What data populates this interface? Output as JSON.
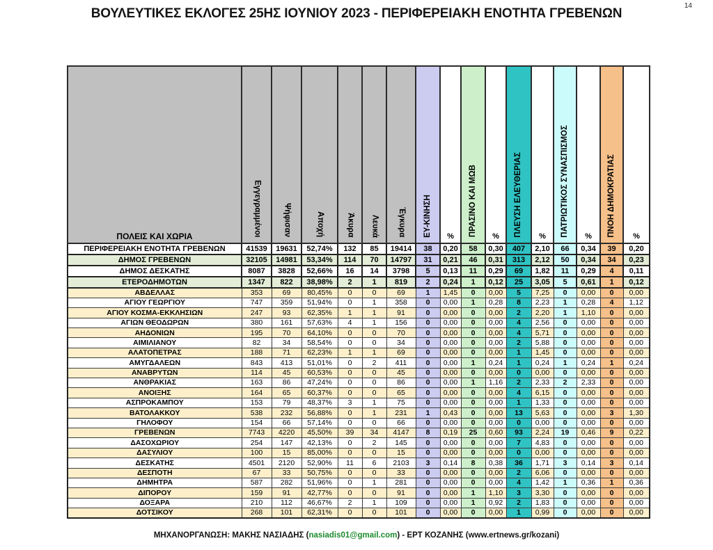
{
  "page": {
    "title": "ΒΟΥΛΕΥΤΙΚΕΣ ΕΚΛΟΓΕΣ 25ΗΣ ΙΟΥΝΙΟΥ 2023 - ΠΕΡΙΦΕΡΕΙΑΚΗ ΕΝΟΤΗΤΑ ΓΡΕΒΕΝΩΝ",
    "page_number": "14",
    "footer": {
      "prefix": "ΜΗΧΑΝΟΡΓΑΝΩΣΗ: ΜΑΚΗΣ ΝΑΣΙΑΔΗΣ (",
      "email": "nasiadis01@gmail.com",
      "middle": ") - ΕΡΤ ΚΟΖΑΝΗΣ (",
      "url": "www.ertnews.gr/kozani",
      "suffix": ")"
    }
  },
  "colors": {
    "header_gray": "#c0c0c0",
    "row_white": "#ffffff",
    "row_green": "#e2ecd7",
    "row_cream": "#fcefca",
    "link_green": "#1d8a2e"
  },
  "table": {
    "first_column_header": "ΠΟΛΕΙΣ ΚΑΙ ΧΩΡΙΑ",
    "percent_header": "%",
    "stat_columns": [
      "Εγγεγραμμένοι",
      "Ψήφισαν",
      "Αποχή",
      "Άκυρα",
      "Λευκά",
      "Έγκυρα"
    ],
    "parties": [
      {
        "name": "ΕΥ-ΚΙΝΗΣΗ",
        "color": "#cccbf0"
      },
      {
        "name": "ΠΡΑΣΙΝΟ ΚΑΙ ΜΩΒ",
        "color": "#cdf0cb"
      },
      {
        "name": "ΠΛΕΥΣΗ ΕΛΕΥΘΕΡΙΑΣ",
        "color": "#30c3c3"
      },
      {
        "name": "ΠΑΤΡΙΩΤΙΚΟΣ ΣΥΝΑΣΠΙΣΜΟΣ",
        "color": "#ccfbfc"
      },
      {
        "name": "ΠΝΟΗ ΔΗΜΟΚΡΑΤΙΑΣ",
        "color": "#f6c08a"
      }
    ],
    "rows": [
      {
        "name": "ΠΕΡΙΦΕΡΕΙΑΚΗ ΕΝΟΤΗΤΑ ΓΡΕΒΕΝΩΝ",
        "shade": "white",
        "bold": true,
        "stats": [
          "41539",
          "19631",
          "52,74%",
          "132",
          "85",
          "19414"
        ],
        "party_values": [
          [
            "38",
            "0,20"
          ],
          [
            "58",
            "0,30"
          ],
          [
            "407",
            "2,10"
          ],
          [
            "66",
            "0,34"
          ],
          [
            "39",
            "0,20"
          ]
        ]
      },
      {
        "name": "ΔΗΜΟΣ ΓΡΕΒΕΝΩΝ",
        "shade": "green",
        "bold": true,
        "stats": [
          "32105",
          "14981",
          "53,34%",
          "114",
          "70",
          "14797"
        ],
        "party_values": [
          [
            "31",
            "0,21"
          ],
          [
            "46",
            "0,31"
          ],
          [
            "313",
            "2,12"
          ],
          [
            "50",
            "0,34"
          ],
          [
            "34",
            "0,23"
          ]
        ]
      },
      {
        "name": "ΔΗΜΟΣ ΔΕΣΚΑΤΗΣ",
        "shade": "white",
        "bold": true,
        "stats": [
          "8087",
          "3828",
          "52,66%",
          "16",
          "14",
          "3798"
        ],
        "party_values": [
          [
            "5",
            "0,13"
          ],
          [
            "11",
            "0,29"
          ],
          [
            "69",
            "1,82"
          ],
          [
            "11",
            "0,29"
          ],
          [
            "4",
            "0,11"
          ]
        ]
      },
      {
        "name": "ΕΤΕΡΟΔΗΜΟΤΩΝ",
        "shade": "green",
        "bold": true,
        "stats": [
          "1347",
          "822",
          "38,98%",
          "2",
          "1",
          "819"
        ],
        "party_values": [
          [
            "2",
            "0,24"
          ],
          [
            "1",
            "0,12"
          ],
          [
            "25",
            "3,05"
          ],
          [
            "5",
            "0,61"
          ],
          [
            "1",
            "0,12"
          ]
        ]
      },
      {
        "name": "ΑΒΔΕΛΛΑΣ",
        "shade": "cream",
        "bold": false,
        "stats": [
          "353",
          "69",
          "80,45%",
          "0",
          "0",
          "69"
        ],
        "party_values": [
          [
            "1",
            "1,45"
          ],
          [
            "0",
            "0,00"
          ],
          [
            "5",
            "7,25"
          ],
          [
            "0",
            "0,00"
          ],
          [
            "0",
            "0,00"
          ]
        ]
      },
      {
        "name": "ΑΓΙΟΥ ΓΕΩΡΓΙΟΥ",
        "shade": "white",
        "bold": false,
        "stats": [
          "747",
          "359",
          "51,94%",
          "0",
          "1",
          "358"
        ],
        "party_values": [
          [
            "0",
            "0,00"
          ],
          [
            "1",
            "0,28"
          ],
          [
            "8",
            "2,23"
          ],
          [
            "1",
            "0,28"
          ],
          [
            "4",
            "1,12"
          ]
        ]
      },
      {
        "name": "ΑΓΙΟΥ ΚΟΣΜΑ-ΕΚΚΛΗΣΙΩΝ",
        "shade": "cream",
        "bold": false,
        "stats": [
          "247",
          "93",
          "62,35%",
          "1",
          "1",
          "91"
        ],
        "party_values": [
          [
            "0",
            "0,00"
          ],
          [
            "0",
            "0,00"
          ],
          [
            "2",
            "2,20"
          ],
          [
            "1",
            "1,10"
          ],
          [
            "0",
            "0,00"
          ]
        ]
      },
      {
        "name": "ΑΓΙΩΝ ΘΕΟΔΩΡΩΝ",
        "shade": "white",
        "bold": false,
        "stats": [
          "380",
          "161",
          "57,63%",
          "4",
          "1",
          "156"
        ],
        "party_values": [
          [
            "0",
            "0,00"
          ],
          [
            "0",
            "0,00"
          ],
          [
            "4",
            "2,56"
          ],
          [
            "0",
            "0,00"
          ],
          [
            "0",
            "0,00"
          ]
        ]
      },
      {
        "name": "ΑΗΔΟΝΙΩΝ",
        "shade": "cream",
        "bold": false,
        "stats": [
          "195",
          "70",
          "64,10%",
          "0",
          "0",
          "70"
        ],
        "party_values": [
          [
            "0",
            "0,00"
          ],
          [
            "0",
            "0,00"
          ],
          [
            "4",
            "5,71"
          ],
          [
            "0",
            "0,00"
          ],
          [
            "0",
            "0,00"
          ]
        ]
      },
      {
        "name": "ΑΙΜΙΛΙΑΝΟΥ",
        "shade": "white",
        "bold": false,
        "stats": [
          "82",
          "34",
          "58,54%",
          "0",
          "0",
          "34"
        ],
        "party_values": [
          [
            "0",
            "0,00"
          ],
          [
            "0",
            "0,00"
          ],
          [
            "2",
            "5,88"
          ],
          [
            "0",
            "0,00"
          ],
          [
            "0",
            "0,00"
          ]
        ]
      },
      {
        "name": "ΑΛΑΤΟΠΕΤΡΑΣ",
        "shade": "cream",
        "bold": false,
        "stats": [
          "188",
          "71",
          "62,23%",
          "1",
          "1",
          "69"
        ],
        "party_values": [
          [
            "0",
            "0,00"
          ],
          [
            "0",
            "0,00"
          ],
          [
            "1",
            "1,45"
          ],
          [
            "0",
            "0,00"
          ],
          [
            "0",
            "0,00"
          ]
        ]
      },
      {
        "name": "ΑΜΥΓΔΑΛΕΩΝ",
        "shade": "white",
        "bold": false,
        "stats": [
          "843",
          "413",
          "51,01%",
          "0",
          "2",
          "411"
        ],
        "party_values": [
          [
            "0",
            "0,00"
          ],
          [
            "1",
            "0,24"
          ],
          [
            "1",
            "0,24"
          ],
          [
            "1",
            "0,24"
          ],
          [
            "1",
            "0,24"
          ]
        ]
      },
      {
        "name": "ΑΝΑΒΡΥΤΩΝ",
        "shade": "cream",
        "bold": false,
        "stats": [
          "114",
          "45",
          "60,53%",
          "0",
          "0",
          "45"
        ],
        "party_values": [
          [
            "0",
            "0,00"
          ],
          [
            "0",
            "0,00"
          ],
          [
            "0",
            "0,00"
          ],
          [
            "0",
            "0,00"
          ],
          [
            "0",
            "0,00"
          ]
        ]
      },
      {
        "name": "ΑΝΘΡΑΚΙΑΣ",
        "shade": "white",
        "bold": false,
        "stats": [
          "163",
          "86",
          "47,24%",
          "0",
          "0",
          "86"
        ],
        "party_values": [
          [
            "0",
            "0,00"
          ],
          [
            "1",
            "1,16"
          ],
          [
            "2",
            "2,33"
          ],
          [
            "2",
            "2,33"
          ],
          [
            "0",
            "0,00"
          ]
        ]
      },
      {
        "name": "ΑΝΟΙΞΗΣ",
        "shade": "cream",
        "bold": false,
        "stats": [
          "164",
          "65",
          "60,37%",
          "0",
          "0",
          "65"
        ],
        "party_values": [
          [
            "0",
            "0,00"
          ],
          [
            "0",
            "0,00"
          ],
          [
            "4",
            "6,15"
          ],
          [
            "0",
            "0,00"
          ],
          [
            "0",
            "0,00"
          ]
        ]
      },
      {
        "name": "ΑΣΠΡΟΚΑΜΠΟΥ",
        "shade": "white",
        "bold": false,
        "stats": [
          "153",
          "79",
          "48,37%",
          "3",
          "1",
          "75"
        ],
        "party_values": [
          [
            "0",
            "0,00"
          ],
          [
            "0",
            "0,00"
          ],
          [
            "1",
            "1,33"
          ],
          [
            "0",
            "0,00"
          ],
          [
            "0",
            "0,00"
          ]
        ]
      },
      {
        "name": "ΒΑΤΟΛΑΚΚΟΥ",
        "shade": "cream",
        "bold": false,
        "stats": [
          "538",
          "232",
          "56,88%",
          "0",
          "1",
          "231"
        ],
        "party_values": [
          [
            "1",
            "0,43"
          ],
          [
            "0",
            "0,00"
          ],
          [
            "13",
            "5,63"
          ],
          [
            "0",
            "0,00"
          ],
          [
            "3",
            "1,30"
          ]
        ]
      },
      {
        "name": "ΓΗΛΟΦΟΥ",
        "shade": "white",
        "bold": false,
        "stats": [
          "154",
          "66",
          "57,14%",
          "0",
          "0",
          "66"
        ],
        "party_values": [
          [
            "0",
            "0,00"
          ],
          [
            "0",
            "0,00"
          ],
          [
            "0",
            "0,00"
          ],
          [
            "0",
            "0,00"
          ],
          [
            "0",
            "0,00"
          ]
        ]
      },
      {
        "name": "ΓΡΕΒΕΝΩΝ",
        "shade": "cream",
        "bold": false,
        "stats": [
          "7743",
          "4220",
          "45,50%",
          "39",
          "34",
          "4147"
        ],
        "party_values": [
          [
            "8",
            "0,19"
          ],
          [
            "25",
            "0,60"
          ],
          [
            "93",
            "2,24"
          ],
          [
            "19",
            "0,46"
          ],
          [
            "9",
            "0,22"
          ]
        ]
      },
      {
        "name": "ΔΑΣΟΧΩΡΙΟΥ",
        "shade": "white",
        "bold": false,
        "stats": [
          "254",
          "147",
          "42,13%",
          "0",
          "2",
          "145"
        ],
        "party_values": [
          [
            "0",
            "0,00"
          ],
          [
            "0",
            "0,00"
          ],
          [
            "7",
            "4,83"
          ],
          [
            "0",
            "0,00"
          ],
          [
            "0",
            "0,00"
          ]
        ]
      },
      {
        "name": "ΔΑΣΥΛΙΟΥ",
        "shade": "cream",
        "bold": false,
        "stats": [
          "100",
          "15",
          "85,00%",
          "0",
          "0",
          "15"
        ],
        "party_values": [
          [
            "0",
            "0,00"
          ],
          [
            "0",
            "0,00"
          ],
          [
            "0",
            "0,00"
          ],
          [
            "0",
            "0,00"
          ],
          [
            "0",
            "0,00"
          ]
        ]
      },
      {
        "name": "ΔΕΣΚΑΤΗΣ",
        "shade": "white",
        "bold": false,
        "stats": [
          "4501",
          "2120",
          "52,90%",
          "11",
          "6",
          "2103"
        ],
        "party_values": [
          [
            "3",
            "0,14"
          ],
          [
            "8",
            "0,38"
          ],
          [
            "36",
            "1,71"
          ],
          [
            "3",
            "0,14"
          ],
          [
            "3",
            "0,14"
          ]
        ]
      },
      {
        "name": "ΔΕΣΠΟΤΗ",
        "shade": "cream",
        "bold": false,
        "stats": [
          "67",
          "33",
          "50,75%",
          "0",
          "0",
          "33"
        ],
        "party_values": [
          [
            "0",
            "0,00"
          ],
          [
            "0",
            "0,00"
          ],
          [
            "2",
            "6,06"
          ],
          [
            "0",
            "0,00"
          ],
          [
            "0",
            "0,00"
          ]
        ]
      },
      {
        "name": "ΔΗΜΗΤΡΑ",
        "shade": "white",
        "bold": false,
        "stats": [
          "587",
          "282",
          "51,96%",
          "0",
          "1",
          "281"
        ],
        "party_values": [
          [
            "0",
            "0,00"
          ],
          [
            "0",
            "0,00"
          ],
          [
            "4",
            "1,42"
          ],
          [
            "1",
            "0,36"
          ],
          [
            "1",
            "0,36"
          ]
        ]
      },
      {
        "name": "ΔΙΠΟΡΟΥ",
        "shade": "cream",
        "bold": false,
        "stats": [
          "159",
          "91",
          "42,77%",
          "0",
          "0",
          "91"
        ],
        "party_values": [
          [
            "0",
            "0,00"
          ],
          [
            "1",
            "1,10"
          ],
          [
            "3",
            "3,30"
          ],
          [
            "0",
            "0,00"
          ],
          [
            "0",
            "0,00"
          ]
        ]
      },
      {
        "name": "ΔΟΞΑΡΑ",
        "shade": "white",
        "bold": false,
        "stats": [
          "210",
          "112",
          "46,67%",
          "2",
          "1",
          "109"
        ],
        "party_values": [
          [
            "0",
            "0,00"
          ],
          [
            "1",
            "0,92"
          ],
          [
            "2",
            "1,83"
          ],
          [
            "0",
            "0,00"
          ],
          [
            "0",
            "0,00"
          ]
        ]
      },
      {
        "name": "ΔΟΤΣΙΚΟΥ",
        "shade": "cream",
        "bold": false,
        "stats": [
          "268",
          "101",
          "62,31%",
          "0",
          "0",
          "101"
        ],
        "party_values": [
          [
            "0",
            "0,00"
          ],
          [
            "0",
            "0,00"
          ],
          [
            "1",
            "0,99"
          ],
          [
            "0",
            "0,00"
          ],
          [
            "0",
            "0,00"
          ]
        ]
      }
    ]
  }
}
